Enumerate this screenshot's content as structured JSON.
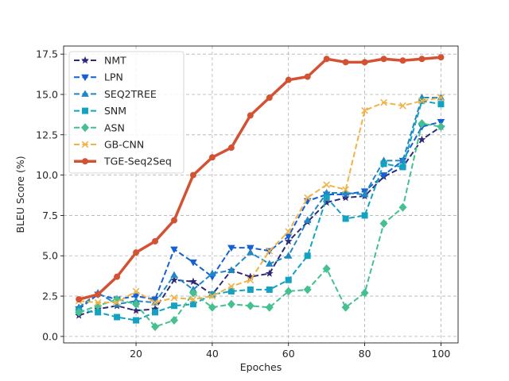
{
  "chart_data": {
    "type": "line",
    "title": "",
    "xlabel": "Epoches",
    "ylabel": "BLEU Score (%)",
    "xlim": [
      1,
      104.5
    ],
    "ylim": [
      -0.4,
      18.0
    ],
    "xticks": [
      "20",
      "40",
      "60",
      "80",
      "100"
    ],
    "yticks": [
      "0.0",
      "2.5",
      "5.0",
      "7.5",
      "10.0",
      "12.5",
      "15.0",
      "17.5"
    ],
    "grid": true,
    "legend_position": "upper-left",
    "x": [
      5,
      10,
      15,
      20,
      25,
      30,
      35,
      40,
      45,
      50,
      55,
      60,
      65,
      70,
      75,
      80,
      85,
      90,
      95,
      100
    ],
    "series": [
      {
        "name": "NMT",
        "color": "#2d2a7a",
        "marker": "star",
        "dashed": true,
        "width": 2,
        "values": [
          1.3,
          1.7,
          1.9,
          1.6,
          1.7,
          3.5,
          3.4,
          2.6,
          4.1,
          3.7,
          3.9,
          5.9,
          7.1,
          8.3,
          8.6,
          8.7,
          9.9,
          10.5,
          12.2,
          13.0
        ]
      },
      {
        "name": "LPN",
        "color": "#1560d4",
        "marker": "triangle-down",
        "dashed": true,
        "width": 2,
        "values": [
          1.7,
          2.6,
          2.3,
          2.5,
          2.3,
          5.4,
          4.6,
          3.7,
          5.5,
          5.5,
          5.3,
          6.2,
          8.4,
          8.8,
          8.8,
          9.0,
          10.0,
          10.9,
          13.0,
          13.3
        ]
      },
      {
        "name": "SEQ2TREE",
        "color": "#2187c4",
        "marker": "triangle-up",
        "dashed": true,
        "width": 2,
        "values": [
          1.8,
          2.7,
          2.0,
          2.2,
          2.1,
          3.8,
          2.9,
          3.9,
          4.1,
          5.2,
          4.5,
          5.0,
          7.2,
          8.9,
          8.9,
          8.8,
          10.9,
          10.9,
          14.8,
          14.8
        ]
      },
      {
        "name": "SNM",
        "color": "#12a2c2",
        "marker": "square",
        "dashed": true,
        "width": 2,
        "values": [
          1.6,
          1.5,
          1.2,
          1.0,
          1.5,
          1.9,
          2.0,
          2.6,
          2.8,
          2.9,
          2.9,
          3.5,
          5.0,
          8.6,
          7.3,
          7.5,
          10.7,
          10.5,
          14.6,
          14.4
        ]
      },
      {
        "name": "ASN",
        "color": "#45c090",
        "marker": "diamond",
        "dashed": true,
        "width": 2,
        "values": [
          1.5,
          1.9,
          2.3,
          2.0,
          0.6,
          1.0,
          2.7,
          1.8,
          2.0,
          1.9,
          1.8,
          2.8,
          2.9,
          4.2,
          1.8,
          2.7,
          7.0,
          8.0,
          13.2,
          13.0
        ]
      },
      {
        "name": "GB-CNN",
        "color": "#f0b347",
        "marker": "x",
        "dashed": true,
        "width": 2,
        "values": [
          2.2,
          2.1,
          2.1,
          2.8,
          2.1,
          2.4,
          2.3,
          2.5,
          3.1,
          3.5,
          5.3,
          6.5,
          8.6,
          9.4,
          9.1,
          14.0,
          14.5,
          14.3,
          14.6,
          14.8
        ]
      },
      {
        "name": "TGE-Seq2Seq",
        "color": "#d35233",
        "marker": "circle",
        "dashed": false,
        "width": 3.5,
        "values": [
          2.3,
          2.6,
          3.7,
          5.2,
          5.9,
          7.2,
          10.0,
          11.1,
          11.7,
          13.7,
          14.8,
          15.9,
          16.1,
          17.2,
          17.0,
          17.0,
          17.2,
          17.1,
          17.2,
          17.3
        ]
      }
    ]
  }
}
